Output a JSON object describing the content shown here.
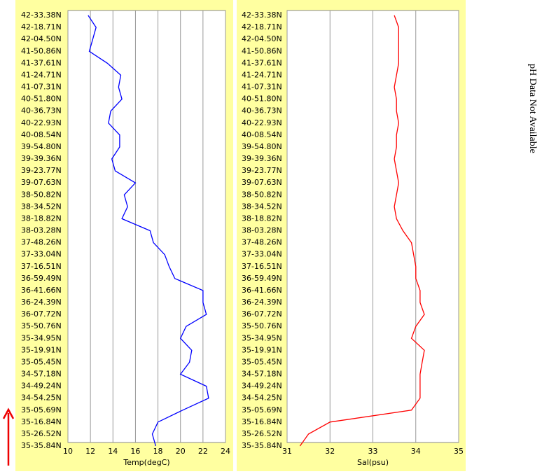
{
  "chart_data": [
    {
      "type": "line",
      "x_label": "Temp(degC)",
      "categories": [
        "42-33.38N",
        "42-18.71N",
        "42-04.50N",
        "41-50.86N",
        "41-37.61N",
        "41-24.71N",
        "41-07.31N",
        "40-51.80N",
        "40-36.73N",
        "40-22.93N",
        "40-08.54N",
        "39-54.80N",
        "39-39.36N",
        "39-23.77N",
        "39-07.63N",
        "38-50.82N",
        "38-34.52N",
        "38-18.82N",
        "38-03.28N",
        "37-48.26N",
        "37-33.04N",
        "37-16.51N",
        "36-59.49N",
        "36-41.66N",
        "36-24.39N",
        "36-07.72N",
        "35-50.76N",
        "35-34.95N",
        "35-19.91N",
        "35-05.45N",
        "34-57.18N",
        "34-49.24N",
        "34-54.25N",
        "35-05.69N",
        "35-16.84N",
        "35-26.52N",
        "35-35.84N"
      ],
      "series": [
        {
          "color": "#0000ff",
          "values": [
            11.8,
            12.5,
            12.2,
            11.9,
            13.5,
            14.7,
            14.5,
            14.8,
            13.8,
            13.6,
            14.6,
            14.6,
            13.9,
            14.2,
            16.0,
            15.0,
            15.3,
            14.8,
            17.3,
            17.6,
            18.6,
            19.0,
            19.5,
            22.0,
            22.0,
            22.3,
            20.5,
            20.0,
            21.0,
            20.8,
            20.0,
            22.3,
            22.5,
            20.2,
            18.0,
            17.5,
            17.8
          ]
        }
      ],
      "xlim": [
        10,
        24
      ],
      "xticks": [
        10,
        12,
        14,
        16,
        18,
        20,
        22,
        24
      ],
      "grid": true
    },
    {
      "type": "line",
      "x_label": "Sal(psu)",
      "categories": [
        "42-33.38N",
        "42-18.71N",
        "42-04.50N",
        "41-50.86N",
        "41-37.61N",
        "41-24.71N",
        "41-07.31N",
        "40-51.80N",
        "40-36.73N",
        "40-22.93N",
        "40-08.54N",
        "39-54.80N",
        "39-39.36N",
        "39-23.77N",
        "39-07.63N",
        "38-50.82N",
        "38-34.52N",
        "38-18.82N",
        "38-03.28N",
        "37-48.26N",
        "37-33.04N",
        "37-16.51N",
        "36-59.49N",
        "36-41.66N",
        "36-24.39N",
        "36-07.72N",
        "35-50.76N",
        "35-34.95N",
        "35-19.91N",
        "35-05.45N",
        "34-57.18N",
        "34-49.24N",
        "34-54.25N",
        "35-05.69N",
        "35-16.84N",
        "35-26.52N",
        "35-35.84N"
      ],
      "series": [
        {
          "color": "#ff0000",
          "values": [
            33.5,
            33.6,
            33.6,
            33.6,
            33.6,
            33.55,
            33.5,
            33.55,
            33.55,
            33.6,
            33.55,
            33.55,
            33.5,
            33.55,
            33.6,
            33.55,
            33.5,
            33.55,
            33.7,
            33.9,
            33.95,
            34.0,
            34.0,
            34.1,
            34.1,
            34.2,
            34.0,
            33.9,
            34.2,
            34.15,
            34.1,
            34.1,
            34.1,
            33.9,
            32.0,
            31.5,
            31.3
          ]
        }
      ],
      "xlim": [
        31,
        35
      ],
      "xticks": [
        31,
        32,
        33,
        34,
        35
      ],
      "grid": true
    }
  ],
  "ph_panel": {
    "message": "pH Data Not Available"
  }
}
